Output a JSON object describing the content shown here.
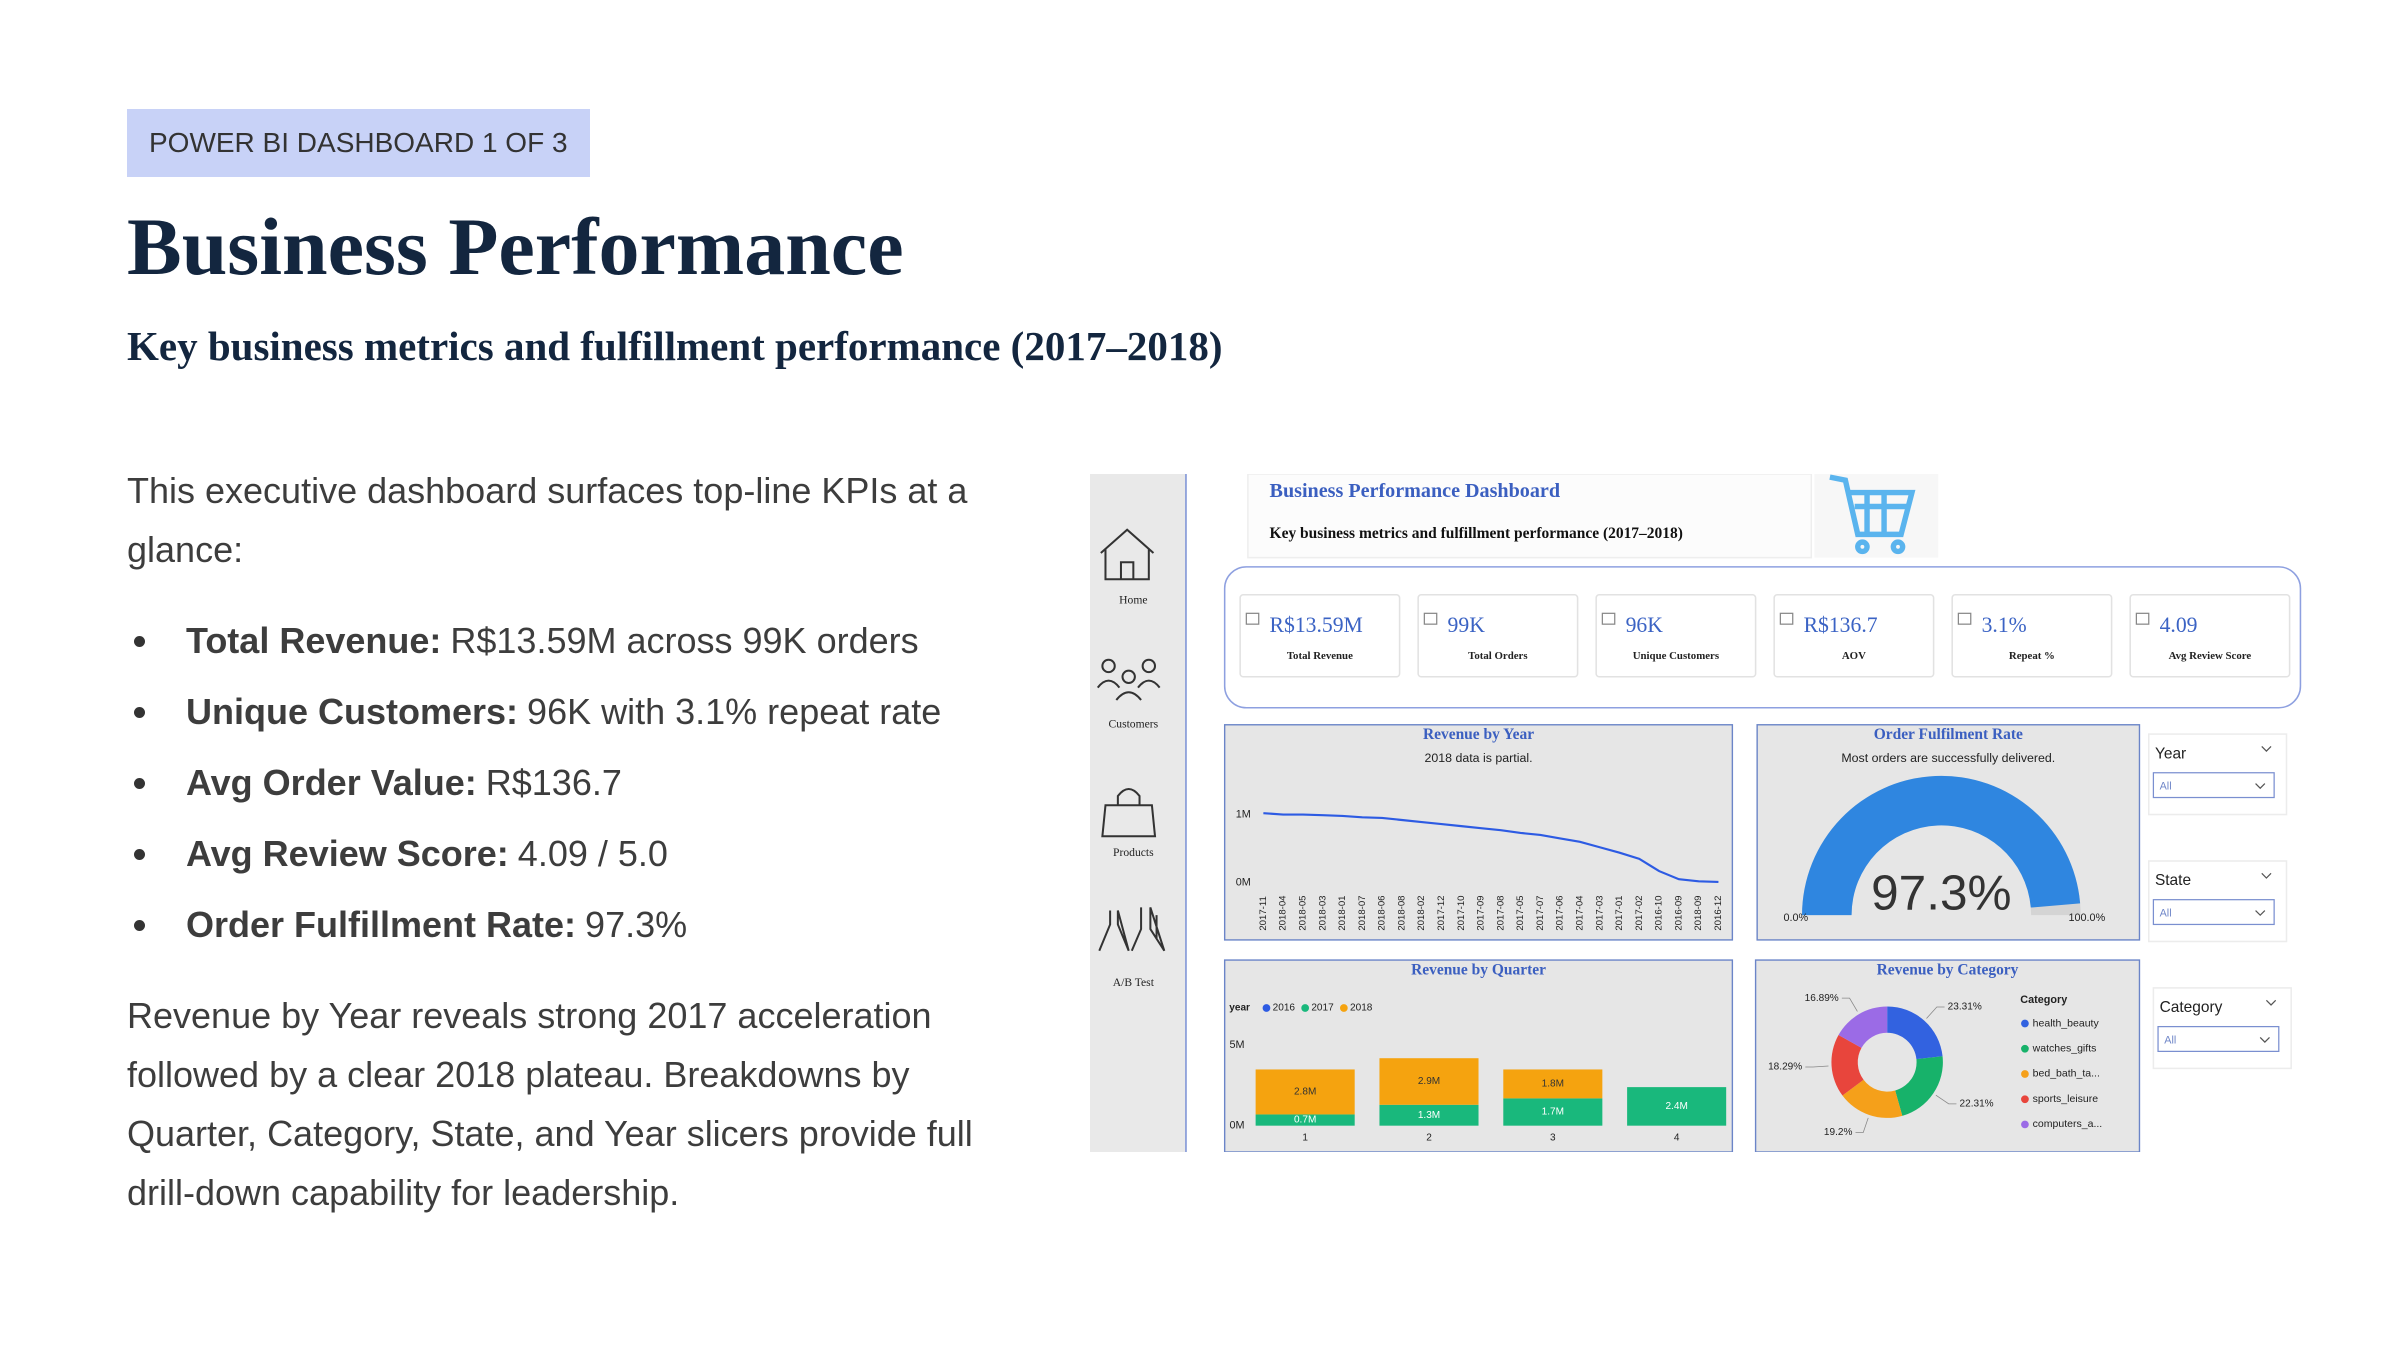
{
  "slide": {
    "badge": "POWER BI DASHBOARD 1 OF 3",
    "title": "Business Performance",
    "subtitle": "Key business metrics and fulfillment performance (2017–2018)",
    "intro": "This executive dashboard surfaces top-line KPIs at a glance:",
    "bullets": [
      {
        "label": "Total Revenue:",
        "text": "R$13.59M across 99K orders"
      },
      {
        "label": "Unique Customers:",
        "text": "96K with 3.1% repeat rate"
      },
      {
        "label": "Avg Order Value:",
        "text": "R$136.7"
      },
      {
        "label": "Avg Review Score:",
        "text": "4.09 / 5.0"
      },
      {
        "label": "Order Fulfillment Rate:",
        "text": "97.3%"
      }
    ],
    "outro": "Revenue by Year reveals strong 2017 acceleration followed by a clear 2018 plateau. Breakdowns by Quarter, Category, State, and Year slicers provide full drill-down capability for leadership."
  },
  "dashboard": {
    "nav": [
      "Home",
      "Customers",
      "Products",
      "A/B Test"
    ],
    "title": "Business Performance Dashboard",
    "subtitle": "Key business metrics and fulfillment performance (2017–2018)",
    "kpis": [
      {
        "value": "R$13.59M",
        "label": "Total Revenue"
      },
      {
        "value": "99K",
        "label": "Total Orders"
      },
      {
        "value": "96K",
        "label": "Unique Customers"
      },
      {
        "value": "R$136.7",
        "label": "AOV"
      },
      {
        "value": "3.1%",
        "label": "Repeat %"
      },
      {
        "value": "4.09",
        "label": "Avg Review Score"
      }
    ],
    "slicers": [
      {
        "label": "Year",
        "value": "All"
      },
      {
        "label": "State",
        "value": "All"
      },
      {
        "label": "Category",
        "value": "All"
      }
    ]
  },
  "chart_data": [
    {
      "type": "line",
      "title": "Revenue by Year",
      "subtitle": "2018 data is partial.",
      "color": "#2d5be3",
      "categories": [
        "2017-11",
        "2018-04",
        "2018-05",
        "2018-03",
        "2018-01",
        "2018-07",
        "2018-06",
        "2018-08",
        "2018-02",
        "2017-12",
        "2017-10",
        "2017-09",
        "2017-08",
        "2017-05",
        "2017-07",
        "2017-06",
        "2017-04",
        "2017-03",
        "2017-01",
        "2017-02",
        "2016-10",
        "2016-09",
        "2018-09",
        "2016-12"
      ],
      "values": [
        1.02,
        1.0,
        1.0,
        0.99,
        0.98,
        0.96,
        0.95,
        0.92,
        0.89,
        0.86,
        0.83,
        0.8,
        0.77,
        0.73,
        0.7,
        0.65,
        0.6,
        0.52,
        0.44,
        0.35,
        0.17,
        0.05,
        0.02,
        0.01
      ],
      "ylim": [
        0,
        1.3
      ],
      "yticks": [
        {
          "value": 0,
          "label": "0M"
        },
        {
          "value": 1,
          "label": "1M"
        }
      ],
      "grid": false
    },
    {
      "type": "bar",
      "stacked": true,
      "title": "Revenue by Quarter",
      "legend_title": "year",
      "categories": [
        "1",
        "2",
        "3",
        "4"
      ],
      "series": [
        {
          "name": "2016",
          "color": "#2d5be3",
          "values": [
            null,
            null,
            null,
            null
          ]
        },
        {
          "name": "2017",
          "color": "#19b87c",
          "values": [
            0.7,
            1.3,
            1.7,
            2.4
          ],
          "value_labels": [
            "0.7M",
            "1.3M",
            "1.7M",
            "2.4M"
          ]
        },
        {
          "name": "2018",
          "color": "#f5a30f",
          "values": [
            2.8,
            2.9,
            1.8,
            null
          ],
          "value_labels": [
            "2.8M",
            "2.9M",
            "1.8M",
            null
          ]
        }
      ],
      "ylim": [
        0,
        5.3
      ],
      "yticks": [
        {
          "value": 0,
          "label": "0M"
        },
        {
          "value": 5,
          "label": "5M"
        }
      ],
      "grid": false
    },
    {
      "type": "gauge",
      "title": "Order Fulfilment Rate",
      "subtitle": "Most orders are successfully delivered.",
      "value": 97.3,
      "value_label": "97.3%",
      "color": "#2f86e0",
      "track_color": "#d4d4d4",
      "ylim": [
        0,
        100
      ],
      "yticks": [
        {
          "value": 0,
          "label": "0.0%"
        },
        {
          "value": 100,
          "label": "100.0%"
        }
      ]
    },
    {
      "type": "pie",
      "title": "Revenue by Category",
      "legend_title": "Category",
      "categories": [
        "health_beauty",
        "watches_gifts",
        "bed_bath_ta...",
        "sports_leisure",
        "computers_a..."
      ],
      "values": [
        23.31,
        22.31,
        19.2,
        18.29,
        16.89
      ],
      "value_labels": [
        "23.31%",
        "22.31%",
        "19.2%",
        "18.29%",
        "16.89%"
      ],
      "colors": [
        "#3262e0",
        "#17b26a",
        "#f5a01a",
        "#e8453c",
        "#9b6be6"
      ]
    }
  ]
}
